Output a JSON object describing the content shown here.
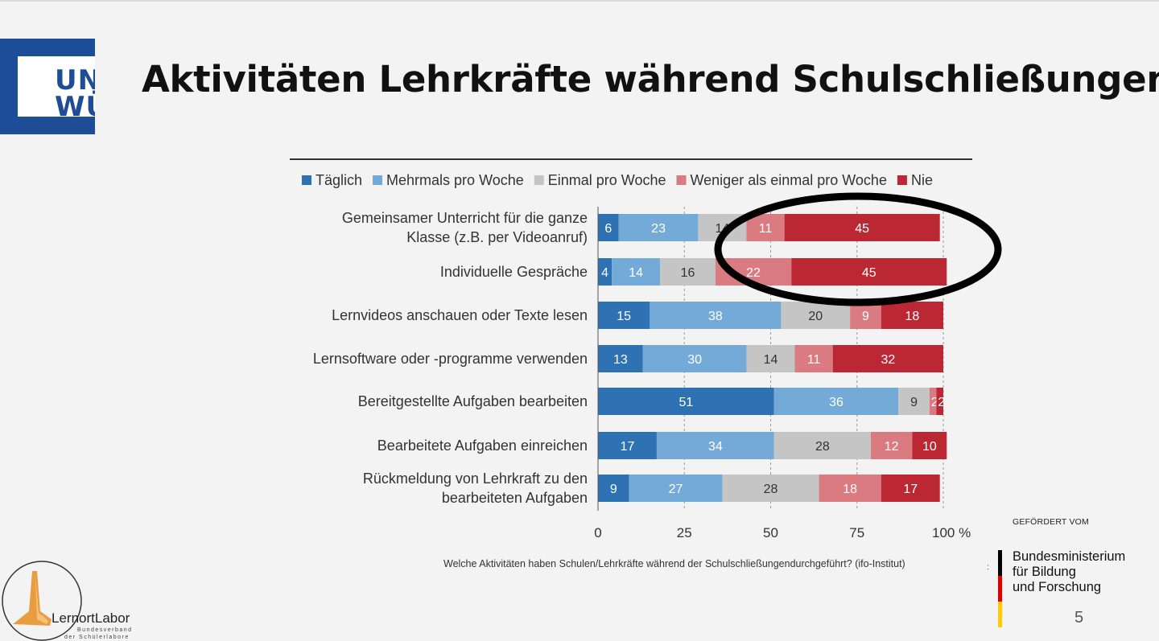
{
  "slide": {
    "logo_text": [
      "UNI",
      "WÜ"
    ],
    "title": "Aktivitäten Lehrkräfte während Schulschließungen",
    "caption": "Welche Aktivitäten haben Schulen/Lehrkräfte während der Schulschließungendurchgeführt? (ifo-Institut)",
    "caption_colon": ":",
    "sponsor_label": "GEFÖRDERT VOM",
    "sponsor_lines": [
      "Bundesministerium",
      "für Bildung",
      "und Forschung"
    ],
    "page_number": "5",
    "lernort_logo": {
      "word1": "LernortLabor",
      "sub1": "Bundesverband",
      "sub2": "der Schülerlabore"
    }
  },
  "colors": {
    "uni_blue": "#1e4d98",
    "series": [
      "#2f72b4",
      "#74aad7",
      "#c5c5c5",
      "#d97b80",
      "#bb2834"
    ],
    "flag": [
      "#000000",
      "#dd0000",
      "#ffcc00"
    ],
    "highlight_ellipse": "#000000"
  },
  "chart_data": {
    "type": "bar",
    "orientation": "horizontal-stacked",
    "categories": [
      [
        "Gemeinsamer Unterricht für die ganze",
        "Klasse (z.B. per Videoanruf)"
      ],
      [
        "Individuelle Gespräche"
      ],
      [
        "Lernvideos anschauen oder Texte lesen"
      ],
      [
        "Lernsoftware oder -programme verwenden"
      ],
      [
        "Bereitgestellte Aufgaben bearbeiten"
      ],
      [
        "Bearbeitete Aufgaben einreichen"
      ],
      [
        "Rückmeldung von Lehrkraft zu den",
        "bearbeiteten Aufgaben"
      ]
    ],
    "series": [
      {
        "name": "Täglich",
        "values": [
          6,
          4,
          15,
          13,
          51,
          17,
          9
        ]
      },
      {
        "name": "Mehrmals pro Woche",
        "values": [
          23,
          14,
          38,
          30,
          36,
          34,
          27
        ]
      },
      {
        "name": "Einmal pro Woche",
        "values": [
          14,
          16,
          20,
          14,
          9,
          28,
          28
        ]
      },
      {
        "name": "Weniger als einmal pro Woche",
        "values": [
          11,
          22,
          9,
          11,
          2,
          12,
          18
        ]
      },
      {
        "name": "Nie",
        "values": [
          45,
          45,
          18,
          32,
          2,
          10,
          17
        ]
      }
    ],
    "xticks": [
      "0",
      "25",
      "50",
      "75",
      "100 %"
    ],
    "xlim": [
      0,
      100
    ],
    "legend_position": "top",
    "grid": "vertical dashed",
    "annotation": "black ellipse highlighting the 'Nie' share of the first two rows"
  }
}
